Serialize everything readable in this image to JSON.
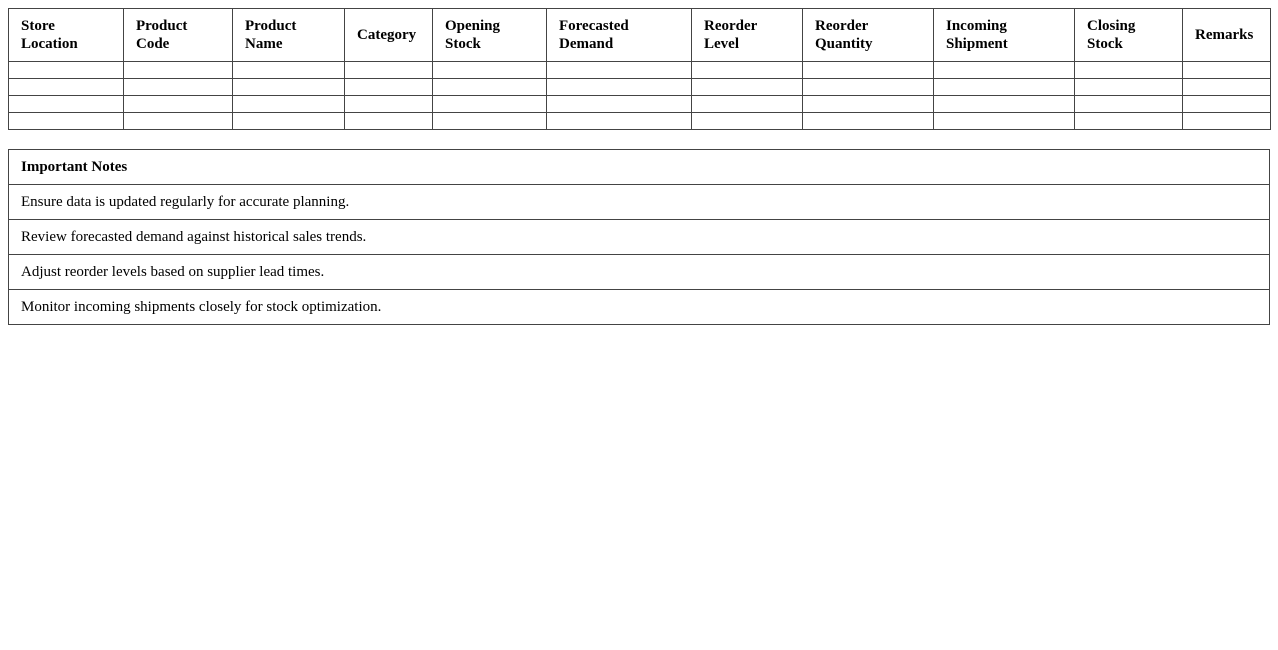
{
  "inventory_table": {
    "headers": [
      "Store Location",
      "Product Code",
      "Product Name",
      "Category",
      "Opening Stock",
      "Forecasted Demand",
      "Reorder Level",
      "Reorder Quantity",
      "Incoming Shipment",
      "Closing Stock",
      "Remarks"
    ],
    "rows": [
      [
        "",
        "",
        "",
        "",
        "",
        "",
        "",
        "",
        "",
        "",
        ""
      ],
      [
        "",
        "",
        "",
        "",
        "",
        "",
        "",
        "",
        "",
        "",
        ""
      ],
      [
        "",
        "",
        "",
        "",
        "",
        "",
        "",
        "",
        "",
        "",
        ""
      ],
      [
        "",
        "",
        "",
        "",
        "",
        "",
        "",
        "",
        "",
        "",
        ""
      ]
    ]
  },
  "notes": {
    "title": "Important Notes",
    "items": [
      "Ensure data is updated regularly for accurate planning.",
      "Review forecasted demand against historical sales trends.",
      "Adjust reorder levels based on supplier lead times.",
      "Monitor incoming shipments closely for stock optimization."
    ]
  }
}
